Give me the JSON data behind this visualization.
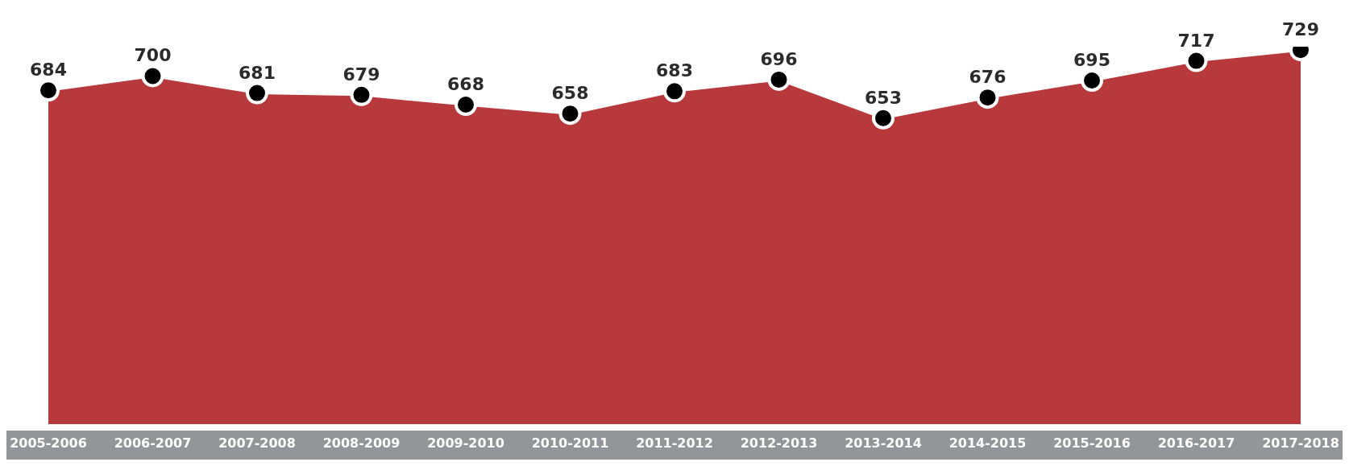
{
  "chart_data": {
    "type": "area",
    "categories": [
      "2005-2006",
      "2006-2007",
      "2007-2008",
      "2008-2009",
      "2009-2010",
      "2010-2011",
      "2011-2012",
      "2012-2013",
      "2013-2014",
      "2014-2015",
      "2015-2016",
      "2016-2017",
      "2017-2018"
    ],
    "series": [
      {
        "color": "#b8393c",
        "values": [
          684,
          700,
          681,
          679,
          668,
          658,
          683,
          696,
          653,
          676,
          695,
          717,
          729
        ]
      }
    ],
    "data_labels": true,
    "marker": "circle",
    "grid": false,
    "legend": false,
    "tick_labels": "x"
  }
}
